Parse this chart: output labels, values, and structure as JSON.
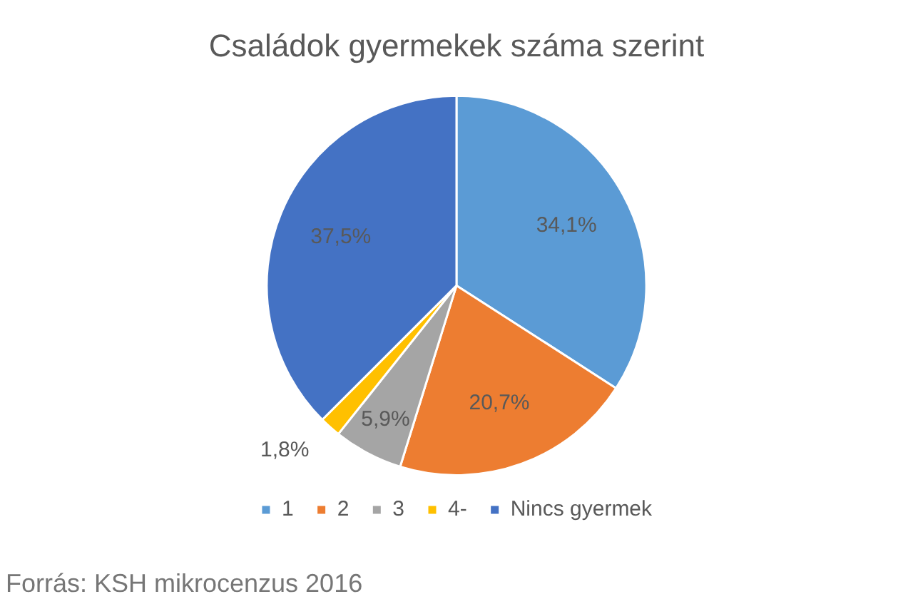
{
  "chart_data": {
    "type": "pie",
    "title": "Családok gyermekek száma szerint",
    "categories": [
      "1",
      "2",
      "3",
      "4-",
      "Nincs gyermek"
    ],
    "values": [
      34.1,
      20.7,
      5.9,
      1.8,
      37.5
    ],
    "colors": [
      "#5b9bd5",
      "#ed7d31",
      "#a5a5a5",
      "#ffc000",
      "#4472c4"
    ],
    "value_labels": [
      "34,1%",
      "20,7%",
      "5,9%",
      "1,8%",
      "37,5%"
    ],
    "legend": "bottom",
    "annotations": [
      "Forrás: KSH mikrocenzus 2016"
    ]
  }
}
